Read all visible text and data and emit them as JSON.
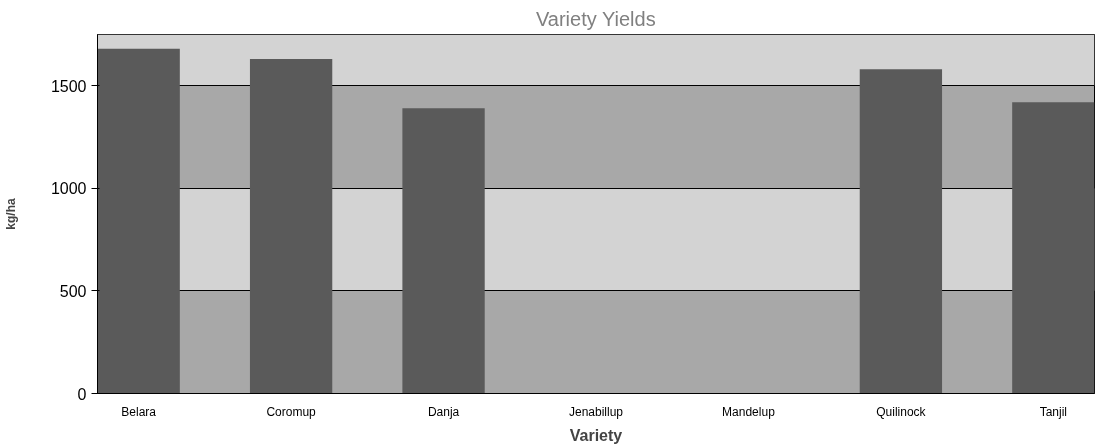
{
  "chart_data": {
    "type": "bar",
    "title": "Variety Yields",
    "xlabel": "Variety",
    "ylabel": "kg/ha",
    "categories": [
      "Belara",
      "Coromup",
      "Danja",
      "Jenabillup",
      "Mandelup",
      "Quilinock",
      "Tanjil"
    ],
    "values": [
      1680,
      1630,
      1390,
      null,
      null,
      1580,
      1420
    ],
    "color": "#5a5a5a",
    "ylim": [
      0,
      1750
    ],
    "yticks": [
      0,
      500,
      1000,
      1500
    ],
    "grid": "y"
  }
}
